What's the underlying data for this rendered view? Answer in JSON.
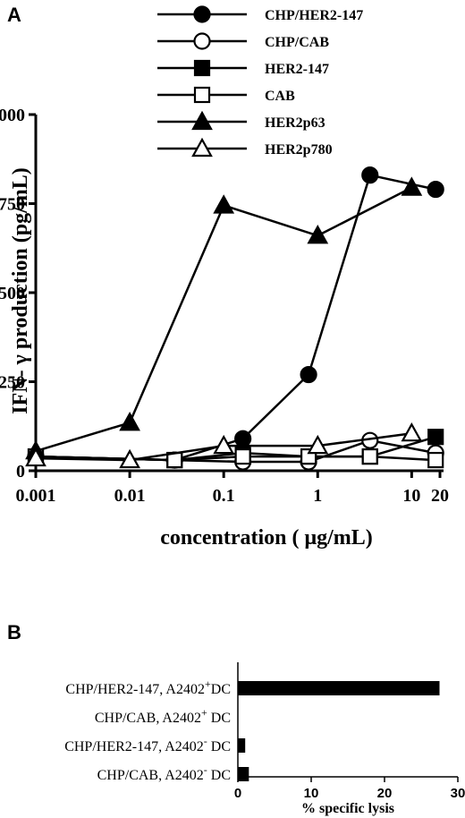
{
  "panels": {
    "a": "A",
    "b": "B"
  },
  "chart_data": [
    {
      "type": "line",
      "xscale": "log",
      "xlim": [
        0.001,
        20
      ],
      "ylim": [
        0,
        1000
      ],
      "xlabel": "concentration ( μg/mL)",
      "ylabel": "IFN- γ  production (pg/mL)",
      "xticks": [
        {
          "value": 0.001,
          "label": "0.001"
        },
        {
          "value": 0.01,
          "label": "0.01"
        },
        {
          "value": 0.1,
          "label": "0.1"
        },
        {
          "value": 1,
          "label": "1"
        },
        {
          "value": 10,
          "label": "10"
        },
        {
          "value": 20,
          "label": "20"
        }
      ],
      "yticks": [
        {
          "value": 0,
          "label": "0"
        },
        {
          "value": 250,
          "label": "250"
        },
        {
          "value": 500,
          "label": "500"
        },
        {
          "value": 750,
          "label": "750"
        },
        {
          "value": 1000,
          "label": "1,000"
        }
      ],
      "legend_position": "top-right",
      "series": [
        {
          "name": "CHP/HER2-147",
          "marker": "circle",
          "filled": true,
          "x": [
            0.001,
            0.03,
            0.16,
            0.8,
            3.6,
            18
          ],
          "y": [
            40,
            30,
            90,
            270,
            830,
            790
          ]
        },
        {
          "name": "CHP/CAB",
          "marker": "circle",
          "filled": false,
          "x": [
            0.001,
            0.03,
            0.16,
            0.8,
            3.6,
            18
          ],
          "y": [
            40,
            30,
            25,
            25,
            85,
            50
          ]
        },
        {
          "name": "HER2-147",
          "marker": "square",
          "filled": true,
          "x": [
            0.001,
            0.03,
            0.16,
            0.8,
            3.6,
            18
          ],
          "y": [
            40,
            30,
            50,
            40,
            40,
            95
          ]
        },
        {
          "name": "CAB",
          "marker": "square",
          "filled": false,
          "x": [
            0.001,
            0.03,
            0.16,
            0.8,
            3.6,
            18
          ],
          "y": [
            40,
            30,
            40,
            40,
            40,
            30
          ]
        },
        {
          "name": "HER2p63",
          "marker": "triangle",
          "filled": true,
          "x": [
            0.001,
            0.01,
            0.1,
            1,
            10
          ],
          "y": [
            55,
            135,
            745,
            660,
            795
          ]
        },
        {
          "name": "HER2p780",
          "marker": "triangle",
          "filled": false,
          "x": [
            0.001,
            0.01,
            0.1,
            1,
            10
          ],
          "y": [
            35,
            30,
            70,
            70,
            105
          ]
        }
      ]
    },
    {
      "type": "bar",
      "orientation": "horizontal",
      "xlabel": "% specific lysis",
      "xlim": [
        0,
        30
      ],
      "xticks": [
        "0",
        "10",
        "20",
        "30"
      ],
      "categories": [
        {
          "name": "CHP/HER2-147, A2402",
          "sup": "+",
          "suffix": "DC"
        },
        {
          "name": "CHP/CAB, A2402",
          "sup": "+",
          "suffix": " DC"
        },
        {
          "name": "CHP/HER2-147, A2402",
          "sup": "-",
          "suffix": " DC"
        },
        {
          "name": "CHP/CAB, A2402",
          "sup": "-",
          "suffix": " DC"
        }
      ],
      "values": [
        27.5,
        0,
        1,
        1.5
      ]
    }
  ]
}
